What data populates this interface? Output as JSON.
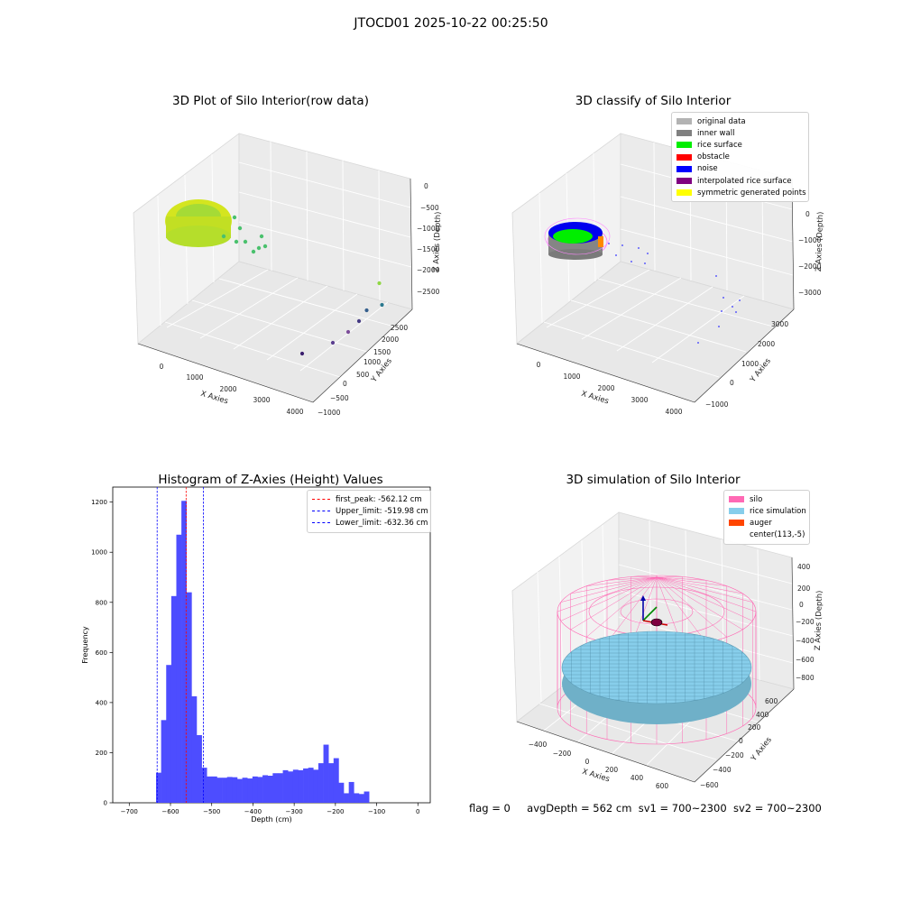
{
  "figure": {
    "suptitle": "JTOCD01 2025-10-22 00:25:50",
    "footer": {
      "flag": "flag = 0",
      "avg_depth": "avgDepth = 562 cm",
      "sv1": "sv1 = 700~2300",
      "sv2": "sv2 = 700~2300"
    }
  },
  "chart_data": [
    {
      "type": "scatter",
      "projection": "3d",
      "title": "3D Plot of Silo Interior(row data)",
      "xlabel": "X Axies",
      "ylabel": "Y Axies",
      "zlabel": "Z Axies (Depth)",
      "x_ticks": [
        "0",
        "1000",
        "2000",
        "3000",
        "4000"
      ],
      "y_ticks": [
        "−1000",
        "−500",
        "0",
        "500",
        "1000",
        "1500",
        "2000",
        "2500"
      ],
      "z_ticks": [
        "0",
        "−500",
        "−1000",
        "−1500",
        "−2000",
        "−2500"
      ],
      "colormap": "viridis",
      "points": [
        {
          "x": 3700,
          "y": 2500,
          "z": -2200
        },
        {
          "x": 3800,
          "y": 2300,
          "z": -2400
        },
        {
          "x": 3700,
          "y": 2100,
          "z": -2450
        },
        {
          "x": 3650,
          "y": 2000,
          "z": -2550
        },
        {
          "x": 3600,
          "y": 1800,
          "z": -2650
        },
        {
          "x": 3500,
          "y": 1600,
          "z": -2750
        },
        {
          "x": 3300,
          "y": 1200,
          "z": -2850
        }
      ]
    },
    {
      "type": "scatter",
      "projection": "3d",
      "title": "3D classify of Silo Interior",
      "xlabel": "X Axies",
      "ylabel": "Y Axies",
      "zlabel": "Z Axies (Depth)",
      "x_ticks": [
        "0",
        "1000",
        "2000",
        "3000",
        "4000"
      ],
      "y_ticks": [
        "−1000",
        "0",
        "1000",
        "2000",
        "3000"
      ],
      "z_ticks": [
        "0",
        "−1000",
        "−2000",
        "−3000"
      ],
      "legend": {
        "placement": "upper right",
        "entries": [
          {
            "label": "original data",
            "color": "#b3b3b3"
          },
          {
            "label": "inner wall",
            "color": "#808080"
          },
          {
            "label": "rice surface",
            "color": "#00ee00"
          },
          {
            "label": "obstacle",
            "color": "#ff0000"
          },
          {
            "label": "noise",
            "color": "#0000ff"
          },
          {
            "label": "interpolated rice surface",
            "color": "#800080"
          },
          {
            "label": "symmetric generated points",
            "color": "#ffff00"
          }
        ]
      }
    },
    {
      "type": "bar",
      "title": "Histogram of Z-Axies (Height) Values",
      "xlabel": "Depth (cm)",
      "ylabel": "Frequency",
      "xlim": [
        -740,
        30
      ],
      "ylim": [
        0,
        1260
      ],
      "x_ticks": [
        -700,
        -600,
        -500,
        -400,
        -300,
        -200,
        -100,
        0
      ],
      "y_ticks": [
        0,
        200,
        400,
        600,
        800,
        1000,
        1200
      ],
      "bar_color": "#4d4dff",
      "bin_start": -635,
      "bin_width": 12.3,
      "values": [
        120,
        330,
        550,
        825,
        1070,
        1205,
        840,
        425,
        270,
        140,
        105,
        105,
        100,
        100,
        103,
        102,
        95,
        100,
        97,
        105,
        103,
        110,
        108,
        118,
        118,
        130,
        125,
        132,
        130,
        137,
        140,
        132,
        158,
        232,
        158,
        178,
        80,
        38,
        83,
        38,
        35,
        45
      ],
      "vlines": [
        {
          "label": "first_peak: -562.12 cm",
          "x": -562.12,
          "color": "#ff0000"
        },
        {
          "label": "Upper_limit: -519.98 cm",
          "x": -519.98,
          "color": "#0000ff"
        },
        {
          "label": "Lower_limit: -632.36 cm",
          "x": -632.36,
          "color": "#0000ff"
        }
      ]
    },
    {
      "type": "surface",
      "projection": "3d",
      "title": "3D simulation of Silo Interior",
      "xlabel": "X Axies",
      "ylabel": "Y Axies",
      "zlabel": "Z Axies (Depth)",
      "x_ticks": [
        "−400",
        "−200",
        "0",
        "200",
        "400",
        "600"
      ],
      "y_ticks": [
        "−600",
        "−400",
        "−200",
        "0",
        "200",
        "400",
        "600"
      ],
      "z_ticks": [
        "400",
        "200",
        "0",
        "−200",
        "−400",
        "−600",
        "−800"
      ],
      "legend": {
        "placement": "upper right",
        "entries": [
          {
            "label": "silo",
            "color": "#ff69b4"
          },
          {
            "label": "rice simulation",
            "color": "#87ceeb"
          },
          {
            "label": "auger",
            "color": "#ff4500"
          },
          {
            "label": "center(113,-5)",
            "color": "#ffffff"
          }
        ]
      },
      "center": [
        113,
        -5
      ]
    }
  ]
}
